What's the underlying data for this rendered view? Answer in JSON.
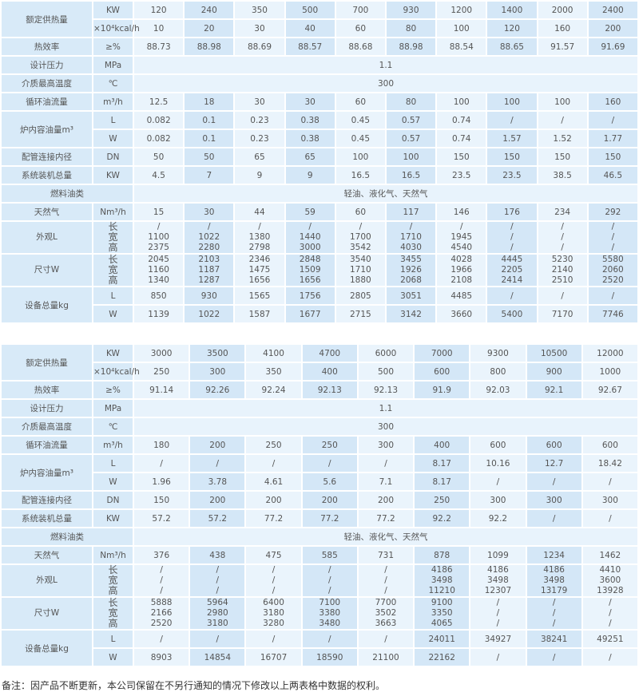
{
  "tables": [
    {
      "rows": [
        {
          "type": "pair",
          "label": "额定供热量",
          "sub": [
            {
              "unit": "KW",
              "values": [
                "120",
                "240",
                "350",
                "500",
                "700",
                "930",
                "1200",
                "1400",
                "2000",
                "2400"
              ]
            },
            {
              "unit": "×10⁴kcal/h",
              "values": [
                "10",
                "20",
                "30",
                "40",
                "60",
                "80",
                "100",
                "120",
                "160",
                "200"
              ]
            }
          ]
        },
        {
          "type": "single",
          "label": "热效率",
          "unit": "≥%",
          "values": [
            "88.73",
            "88.98",
            "88.69",
            "88.57",
            "88.68",
            "88.98",
            "88.54",
            "88.65",
            "91.57",
            "91.69"
          ]
        },
        {
          "type": "span",
          "label": "设计压力",
          "unit": "MPa",
          "value": "1.1"
        },
        {
          "type": "span",
          "label": "介质最高温度",
          "unit": "℃",
          "value": "300"
        },
        {
          "type": "single",
          "label": "循环油流量",
          "unit": "m³/h",
          "values": [
            "12.5",
            "18",
            "30",
            "30",
            "60",
            "80",
            "100",
            "100",
            "100",
            "160"
          ]
        },
        {
          "type": "pair",
          "label": "炉内容油量m³",
          "sub": [
            {
              "unit": "L",
              "values": [
                "0.082",
                "0.1",
                "0.23",
                "0.38",
                "0.45",
                "0.57",
                "0.74",
                "/",
                "/",
                "/"
              ]
            },
            {
              "unit": "W",
              "values": [
                "0.082",
                "0.1",
                "0.23",
                "0.38",
                "0.45",
                "0.57",
                "0.74",
                "1.57",
                "1.52",
                "1.77"
              ]
            }
          ]
        },
        {
          "type": "single",
          "label": "配管连接内径",
          "unit": "DN",
          "values": [
            "50",
            "50",
            "65",
            "65",
            "100",
            "100",
            "150",
            "150",
            "150",
            "150"
          ]
        },
        {
          "type": "single",
          "label": "系统装机总量",
          "unit": "KW",
          "values": [
            "4.5",
            "7",
            "9",
            "9",
            "16.5",
            "16.5",
            "23.5",
            "23.5",
            "38.5",
            "46.5"
          ]
        },
        {
          "type": "fuel",
          "label": "燃料油类",
          "value": "轻油、液化气、天然气"
        },
        {
          "type": "single",
          "label": "天然气",
          "unit": "Nm³/h",
          "values": [
            "15",
            "30",
            "44",
            "59",
            "60",
            "117",
            "146",
            "176",
            "234",
            "292"
          ]
        },
        {
          "type": "multi",
          "label": "外观L",
          "unit_lines": [
            "长",
            "宽",
            "高"
          ],
          "values": [
            [
              "/",
              "1100",
              "2375"
            ],
            [
              "/",
              "1022",
              "2280"
            ],
            [
              "/",
              "1380",
              "2798"
            ],
            [
              "/",
              "1440",
              "3000"
            ],
            [
              "/",
              "1700",
              "3542"
            ],
            [
              "/",
              "1710",
              "4030"
            ],
            [
              "/",
              "1945",
              "4540"
            ],
            [
              "/",
              "/",
              "/"
            ],
            [
              "/",
              "/",
              "/"
            ],
            [
              "/",
              "/",
              "/"
            ]
          ]
        },
        {
          "type": "multi",
          "label": "尺寸W",
          "unit_lines": [
            "长",
            "宽",
            "高"
          ],
          "values": [
            [
              "2045",
              "1160",
              "1340"
            ],
            [
              "2103",
              "1187",
              "1287"
            ],
            [
              "2346",
              "1475",
              "1656"
            ],
            [
              "2848",
              "1509",
              "1656"
            ],
            [
              "3540",
              "1710",
              "1880"
            ],
            [
              "3455",
              "1926",
              "2068"
            ],
            [
              "4028",
              "1966",
              "2108"
            ],
            [
              "4445",
              "2205",
              "2414"
            ],
            [
              "5230",
              "2140",
              "2510"
            ],
            [
              "5580",
              "2060",
              "2520"
            ]
          ]
        },
        {
          "type": "pair",
          "label": "设备总量kg",
          "sub": [
            {
              "unit": "L",
              "values": [
                "850",
                "930",
                "1565",
                "1756",
                "2805",
                "3051",
                "4485",
                "/",
                "/",
                "/"
              ]
            },
            {
              "unit": "W",
              "values": [
                "1139",
                "1022",
                "1587",
                "1677",
                "2715",
                "3142",
                "3660",
                "5400",
                "7170",
                "7746"
              ]
            }
          ]
        }
      ]
    },
    {
      "rows": [
        {
          "type": "pair",
          "label": "额定供热量",
          "sub": [
            {
              "unit": "KW",
              "values": [
                "3000",
                "3500",
                "4100",
                "4700",
                "6000",
                "7000",
                "9300",
                "10500",
                "12000"
              ]
            },
            {
              "unit": "×10⁴kcal/h",
              "values": [
                "250",
                "300",
                "350",
                "400",
                "500",
                "600",
                "800",
                "900",
                "1000"
              ]
            }
          ]
        },
        {
          "type": "single",
          "label": "热效率",
          "unit": "≥%",
          "values": [
            "91.14",
            "92.26",
            "92.24",
            "92.13",
            "92.13",
            "91.9",
            "92.03",
            "92.1",
            "92.67"
          ]
        },
        {
          "type": "span",
          "label": "设计压力",
          "unit": "MPa",
          "value": "1.1"
        },
        {
          "type": "span",
          "label": "介质最高温度",
          "unit": "℃",
          "value": "300"
        },
        {
          "type": "single",
          "label": "循环油流量",
          "unit": "m³/h",
          "values": [
            "180",
            "200",
            "250",
            "250",
            "300",
            "400",
            "600",
            "600",
            "600"
          ]
        },
        {
          "type": "pair",
          "label": "炉内容油量m³",
          "sub": [
            {
              "unit": "L",
              "values": [
                "/",
                "/",
                "/",
                "/",
                "/",
                "8.17",
                "10.16",
                "12.7",
                "18.42"
              ]
            },
            {
              "unit": "W",
              "values": [
                "1.96",
                "3.78",
                "4.61",
                "5.6",
                "7.1",
                "8.17",
                "/",
                "/",
                "/"
              ]
            }
          ]
        },
        {
          "type": "single",
          "label": "配管连接内径",
          "unit": "DN",
          "values": [
            "150",
            "200",
            "200",
            "200",
            "200",
            "250",
            "300",
            "300",
            "300"
          ]
        },
        {
          "type": "single",
          "label": "系统装机总量",
          "unit": "KW",
          "values": [
            "57.2",
            "57.2",
            "77.2",
            "77.2",
            "77.2",
            "92.2",
            "92.2",
            "/",
            "/"
          ]
        },
        {
          "type": "fuel",
          "label": "燃料油类",
          "value": "轻油、液化气、天然气"
        },
        {
          "type": "single",
          "label": "天然气",
          "unit": "Nm³/h",
          "values": [
            "376",
            "438",
            "475",
            "585",
            "731",
            "878",
            "1099",
            "1234",
            "1462"
          ]
        },
        {
          "type": "multi",
          "label": "外观L",
          "unit_lines": [
            "长",
            "宽",
            "高"
          ],
          "values": [
            [
              "/",
              "/",
              "/"
            ],
            [
              "/",
              "/",
              "/"
            ],
            [
              "/",
              "/",
              "/"
            ],
            [
              "/",
              "/",
              "/"
            ],
            [
              "/",
              "/",
              "/"
            ],
            [
              "4186",
              "3498",
              "11210"
            ],
            [
              "4186",
              "3498",
              "12307"
            ],
            [
              "4186",
              "3498",
              "13179"
            ],
            [
              "4410",
              "3600",
              "13928"
            ]
          ]
        },
        {
          "type": "multi",
          "label": "尺寸W",
          "unit_lines": [
            "长",
            "宽",
            "高"
          ],
          "values": [
            [
              "5888",
              "2166",
              "2520"
            ],
            [
              "5964",
              "2980",
              "3180"
            ],
            [
              "6400",
              "3180",
              "3280"
            ],
            [
              "7100",
              "3380",
              "3480"
            ],
            [
              "7700",
              "3502",
              "3663"
            ],
            [
              "9100",
              "3350",
              "4065"
            ],
            [
              "/",
              "/",
              "/"
            ],
            [
              "/",
              "/",
              "/"
            ],
            [
              "/",
              "/",
              "/"
            ]
          ]
        },
        {
          "type": "pair",
          "label": "设备总量kg",
          "sub": [
            {
              "unit": "L",
              "values": [
                "/",
                "/",
                "/",
                "/",
                "/",
                "24011",
                "34927",
                "38241",
                "49251"
              ]
            },
            {
              "unit": "W",
              "values": [
                "8903",
                "14854",
                "16707",
                "18590",
                "21100",
                "22162",
                "/",
                "/",
                "/"
              ]
            }
          ]
        }
      ]
    }
  ],
  "note": "备注：因产品不断更新，本公司保留在不另行通知的情况下修改以上两表格中数据的权利。",
  "colors": {
    "label_bg": "#d8eaf8",
    "col_light": "#eaf4fc",
    "col_dark": "#d4e7f7",
    "text": "#555555"
  }
}
